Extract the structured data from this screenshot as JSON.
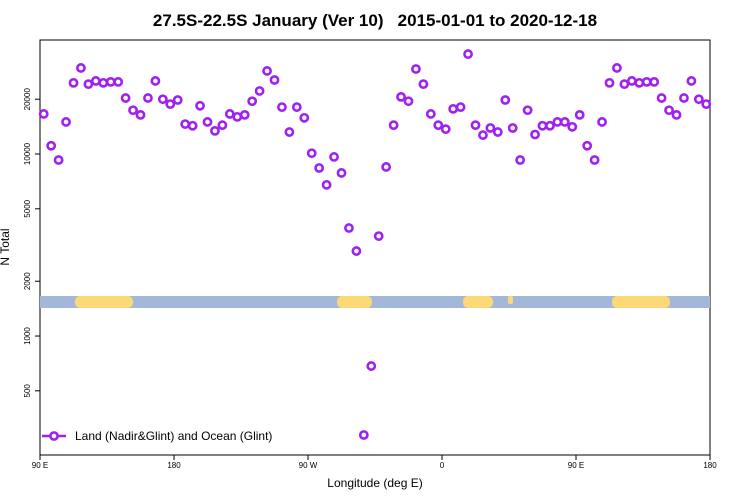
{
  "chart_data": {
    "type": "scatter",
    "title": "27.5S-22.5S January (Ver 10)   2015-01-01 to 2020-12-18",
    "x_label": "Longitude (deg E)",
    "y_label": "N Total",
    "log_y": true,
    "xlim": [
      90,
      540
    ],
    "ylim": [
      222,
      42300
    ],
    "xticks": [
      {
        "value": 90,
        "label": "90 E"
      },
      180,
      {
        "value": 270,
        "label": "90 W"
      },
      {
        "value": 360,
        "label": "0"
      },
      {
        "value": 450,
        "label": "90 E"
      },
      {
        "value": 540,
        "label": "180"
      }
    ],
    "yticks": [
      500,
      1000,
      2000,
      5000,
      10000,
      20000
    ],
    "legend": "bottom-left",
    "series": [
      {
        "name": "Land (Nadir&Glint) and Ocean (Glint)",
        "color": "#a020f0",
        "x": [
          92.5,
          97.5,
          102.5,
          107.5,
          112.5,
          117.5,
          122.5,
          127.5,
          132.5,
          137.5,
          142.5,
          147.5,
          152.5,
          157.5,
          162.5,
          167.5,
          172.5,
          177.5,
          182.5,
          187.5,
          192.5,
          197.5,
          202.5,
          207.5,
          212.5,
          217.5,
          222.5,
          227.5,
          232.5,
          237.5,
          242.5,
          247.5,
          252.5,
          257.5,
          262.5,
          267.5,
          272.5,
          277.5,
          282.5,
          287.5,
          292.5,
          297.5,
          302.5,
          307.5,
          312.5,
          317.5,
          322.5,
          327.5,
          332.5,
          337.5,
          342.5,
          347.5,
          352.5,
          357.5,
          362.5,
          367.5,
          372.5,
          377.5,
          382.5,
          387.5,
          392.5,
          397.5,
          402.5,
          407.5,
          412.5,
          417.5,
          422.5,
          427.5,
          432.5,
          437.5,
          442.5,
          447.5,
          452.5,
          457.5,
          462.5,
          467.5,
          472.5,
          477.5,
          482.5,
          487.5,
          492.5,
          497.5,
          502.5,
          507.5,
          512.5,
          517.5,
          522.5,
          527.5,
          532.5,
          537.5
        ],
        "values": [
          16600,
          11100,
          9270,
          15000,
          24600,
          29700,
          24200,
          25200,
          24600,
          24900,
          24900,
          20300,
          17400,
          16400,
          20300,
          25200,
          20000,
          18800,
          19800,
          14600,
          14300,
          18400,
          15000,
          13400,
          14400,
          16600,
          16000,
          16400,
          19500,
          22200,
          28600,
          25500,
          18100,
          13200,
          18100,
          15800,
          10100,
          8380,
          6770,
          9640,
          7870,
          3920,
          2930,
          286,
          684,
          3540,
          8490,
          14400,
          20600,
          19500,
          29300,
          24200,
          16600,
          14400,
          13700,
          17700,
          18100,
          35400,
          14400,
          12700,
          13900,
          13200,
          19800,
          13900,
          9270,
          17400,
          12800,
          14300,
          14300,
          15000,
          15000,
          14100,
          16400,
          11100,
          9270,
          15000,
          24600,
          29700,
          24200,
          25200,
          24600,
          24900,
          24900,
          20300,
          17400,
          16400,
          20300,
          25200,
          20000,
          18800
        ]
      }
    ]
  }
}
